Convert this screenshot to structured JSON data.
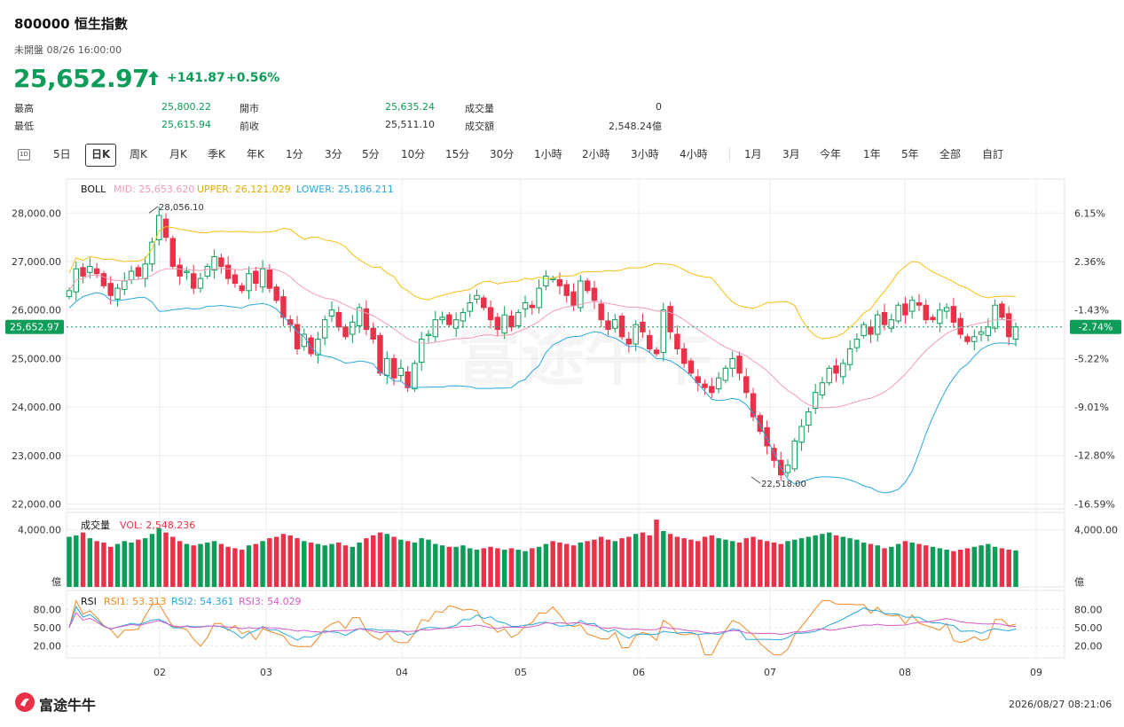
{
  "header": {
    "code": "800000",
    "name": "恒生指數",
    "title": "800000  恒生指數",
    "status": "未開盤 08/26 16:00:00",
    "price": "25,652.97",
    "change": "+141.87",
    "change_pct": "+0.56%",
    "up_color": "#0d9d58",
    "down_color": "#e8324a"
  },
  "stats": {
    "high_label": "最高",
    "high": "25,800.22",
    "low_label": "最低",
    "low": "25,615.94",
    "open_label": "開市",
    "open": "25,635.24",
    "prev_label": "前收",
    "prev": "25,511.10",
    "vol_label": "成交量",
    "vol": "0",
    "turnover_label": "成交額",
    "turnover": "2,548.24億"
  },
  "tabs": [
    "5日",
    "日K",
    "周K",
    "月K",
    "季K",
    "年K",
    "1分",
    "3分",
    "5分",
    "10分",
    "15分",
    "30分",
    "1小時",
    "2小時",
    "3小時",
    "4小時",
    "1月",
    "3月",
    "今年",
    "1年",
    "5年",
    "全部",
    "自訂"
  ],
  "tab_icon": "1D",
  "active_tab": "日K",
  "chart_data": [
    {
      "type": "candlestick",
      "panel": "price",
      "indicator_label": "BOLL",
      "mid_label": "MID: 25,653.620",
      "upper_label": "UPPER: 26,121.029",
      "lower_label": "LOWER: 25,186.211",
      "mid_color": "#f29bb5",
      "upper_color": "#f5c00f",
      "lower_color": "#29a8e0",
      "y_ticks": [
        "28,000.00",
        "27,000.00",
        "26,000.00",
        "25,000.00",
        "24,000.00",
        "23,000.00",
        "22,000.00"
      ],
      "y_tick_values": [
        28000,
        27000,
        26000,
        25000,
        24000,
        23000,
        22000
      ],
      "pct_ticks": [
        "6.15%",
        "2.36%",
        "-1.43%",
        "-2.74%",
        "-5.22%",
        "-9.01%",
        "-12.80%",
        "-16.59%"
      ],
      "ylim": [
        21900,
        28700
      ],
      "current_price_label": "25,652.97",
      "current_pct_label": "-2.74%",
      "high_annotation": "28,056.10",
      "low_annotation": "22,518.00",
      "x_labels": [
        "02",
        "03",
        "04",
        "05",
        "06",
        "07",
        "08",
        "09"
      ],
      "closes": [
        26400,
        26850,
        26700,
        26900,
        26750,
        26500,
        26300,
        26450,
        26600,
        26800,
        26700,
        26950,
        27400,
        27950,
        27500,
        26900,
        26700,
        26800,
        26450,
        26650,
        26900,
        27100,
        26900,
        26650,
        26550,
        26400,
        26750,
        26550,
        26850,
        26450,
        26200,
        25850,
        25700,
        25200,
        25500,
        25100,
        25400,
        25800,
        26000,
        25650,
        25450,
        25750,
        26050,
        25600,
        25400,
        24700,
        25000,
        24600,
        24800,
        24400,
        24900,
        25400,
        25500,
        25800,
        25850,
        25700,
        25800,
        25950,
        26150,
        26300,
        26050,
        25800,
        25600,
        25900,
        25650,
        25950,
        26150,
        26050,
        26450,
        26700,
        26650,
        26500,
        26300,
        26100,
        26600,
        26400,
        26200,
        25800,
        25600,
        25800,
        25450,
        25300,
        25700,
        25550,
        25200,
        25100,
        26000,
        25550,
        25200,
        24900,
        24700,
        24500,
        24400,
        24300,
        24600,
        24800,
        25000,
        24700,
        24300,
        23800,
        23500,
        23200,
        22900,
        22600,
        22800,
        23300,
        23600,
        23900,
        24300,
        24500,
        24800,
        24700,
        24900,
        25200,
        25400,
        25700,
        25500,
        25900,
        25700,
        25800,
        26100,
        25900,
        26200,
        26100,
        25800,
        25800,
        26000,
        26050,
        25750,
        25500,
        25350,
        25450,
        25550,
        25650,
        26100,
        25850,
        25450,
        25653
      ],
      "volume_panel_label": "成交量",
      "volume_label": "VOL: 2,548.236",
      "volume_ticks": [
        "4,000.00",
        "億"
      ],
      "volumes": [
        3500,
        3600,
        3800,
        3400,
        3200,
        3100,
        2800,
        3000,
        3200,
        3100,
        3300,
        3400,
        3700,
        4100,
        3800,
        3500,
        3200,
        3000,
        2900,
        3000,
        3100,
        3200,
        3000,
        2800,
        2700,
        2600,
        2900,
        3000,
        3200,
        3400,
        3500,
        3700,
        3600,
        3400,
        3200,
        3100,
        3000,
        2900,
        3000,
        3100,
        2900,
        2800,
        3100,
        3400,
        3600,
        3800,
        3700,
        3500,
        3300,
        3200,
        3100,
        3400,
        3300,
        3000,
        2900,
        2800,
        2800,
        2900,
        2700,
        2600,
        2700,
        2800,
        2700,
        2600,
        2700,
        2600,
        2500,
        2700,
        2800,
        3000,
        3200,
        3100,
        3000,
        2900,
        3100,
        3200,
        3300,
        3500,
        3300,
        3200,
        3400,
        3500,
        3700,
        3800,
        3600,
        4700,
        3900,
        3700,
        3500,
        3400,
        3300,
        3200,
        3500,
        3600,
        3400,
        3300,
        3200,
        3100,
        3400,
        3500,
        3300,
        3200,
        3100,
        3000,
        3200,
        3300,
        3400,
        3500,
        3600,
        3700,
        3800,
        3600,
        3500,
        3400,
        3300,
        3100,
        3000,
        2900,
        2700,
        2800,
        3000,
        3200,
        3100,
        3000,
        2900,
        2800,
        2700,
        2600,
        2500,
        2600,
        2700,
        2800,
        2900,
        3000,
        2800,
        2700,
        2600,
        2548
      ],
      "rsi_label": "RSI",
      "rsi1_label": "RSI1: 53.313",
      "rsi2_label": "RSI2: 54.361",
      "rsi3_label": "RSI3: 54.029",
      "rsi_colors": [
        "#f08a24",
        "#29a8e0",
        "#d659c8"
      ],
      "rsi_ticks": [
        "80.00",
        "50.00",
        "20.00"
      ],
      "rsi_tick_values": [
        80,
        50,
        20
      ]
    }
  ],
  "footer": {
    "logo_text": "富途牛牛",
    "watermark": "富途牛牛",
    "timestamp": "2026/08/27 08:21:06"
  }
}
